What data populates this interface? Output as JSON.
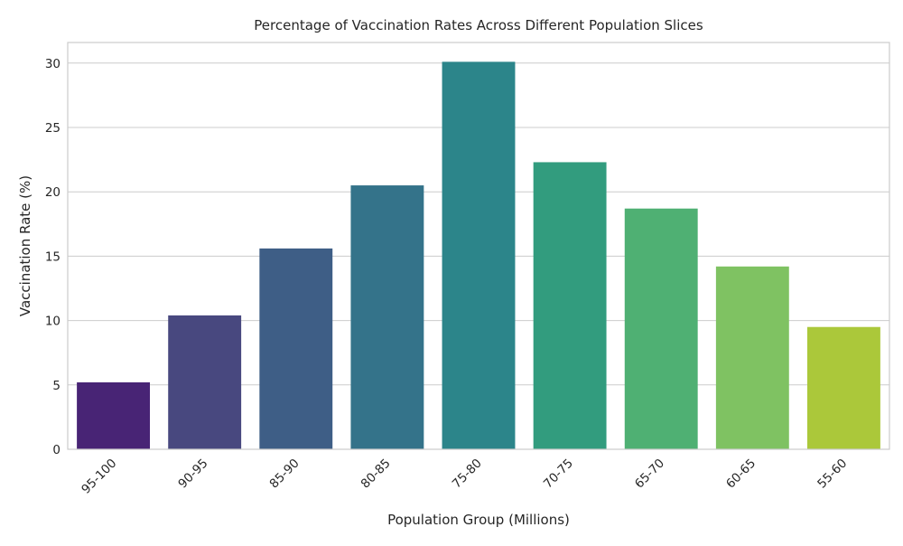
{
  "chart_data": {
    "type": "bar",
    "title": "Percentage of Vaccination Rates Across Different Population Slices",
    "xlabel": "Population Group (Millions)",
    "ylabel": "Vaccination Rate (%)",
    "categories": [
      "95-100",
      "90-95",
      "85-90",
      "80-85",
      "75-80",
      "70-75",
      "65-70",
      "60-65",
      "55-60"
    ],
    "values": [
      5.2,
      10.4,
      15.6,
      20.5,
      30.1,
      22.3,
      18.7,
      14.2,
      9.5
    ],
    "colors": [
      "#482475",
      "#48487f",
      "#3e5e86",
      "#34738a",
      "#2c858a",
      "#329c7e",
      "#4fb073",
      "#7fc262",
      "#abc83a"
    ],
    "ylim": [
      0,
      31.6
    ],
    "yticks": [
      0,
      5,
      10,
      15,
      20,
      25,
      30
    ],
    "grid": true,
    "grid_axis": "y",
    "legend": "none"
  }
}
